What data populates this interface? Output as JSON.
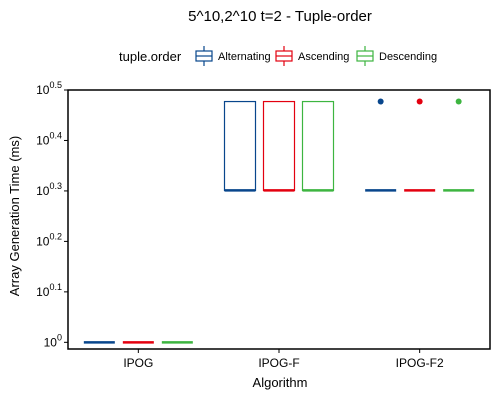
{
  "chart_data": {
    "type": "box",
    "title": "5^10,2^10 t=2 - Tuple-order",
    "xlabel": "Algorithm",
    "ylabel": "Array Generation Time (ms)",
    "categories": [
      "IPOG",
      "IPOG-F",
      "IPOG-F2"
    ],
    "y_scale": "log10",
    "y_ticks": [
      {
        "exp": "0",
        "value": 1.0
      },
      {
        "exp": "0.1",
        "value": 1.2589
      },
      {
        "exp": "0.2",
        "value": 1.5849
      },
      {
        "exp": "0.3",
        "value": 1.9953
      },
      {
        "exp": "0.4",
        "value": 2.5119
      },
      {
        "exp": "0.5",
        "value": 3.1623
      }
    ],
    "ylim": [
      0.97,
      3.1623
    ],
    "legend": {
      "title": "tuple.order",
      "position": "top",
      "entries": [
        "Alternating",
        "Ascending",
        "Descending"
      ]
    },
    "series": [
      {
        "name": "Alternating",
        "color": "#08468C",
        "boxes": [
          {
            "min": 1,
            "q1": 1,
            "median": 1,
            "q3": 1,
            "max": 1,
            "outliers": []
          },
          {
            "min": 2,
            "q1": 2,
            "median": 2,
            "q3": 3,
            "max": 3,
            "outliers": []
          },
          {
            "min": 2,
            "q1": 2,
            "median": 2,
            "q3": 2,
            "max": 2,
            "outliers": [
              3
            ]
          }
        ]
      },
      {
        "name": "Ascending",
        "color": "#E3000F",
        "boxes": [
          {
            "min": 1,
            "q1": 1,
            "median": 1,
            "q3": 1,
            "max": 1,
            "outliers": []
          },
          {
            "min": 2,
            "q1": 2,
            "median": 2,
            "q3": 3,
            "max": 3,
            "outliers": []
          },
          {
            "min": 2,
            "q1": 2,
            "median": 2,
            "q3": 2,
            "max": 2,
            "outliers": [
              3
            ]
          }
        ]
      },
      {
        "name": "Descending",
        "color": "#3DB540",
        "boxes": [
          {
            "min": 1,
            "q1": 1,
            "median": 1,
            "q3": 1,
            "max": 1,
            "outliers": []
          },
          {
            "min": 2,
            "q1": 2,
            "median": 2,
            "q3": 3,
            "max": 3,
            "outliers": []
          },
          {
            "min": 2,
            "q1": 2,
            "median": 2,
            "q3": 2,
            "max": 2,
            "outliers": [
              3
            ]
          }
        ]
      }
    ]
  }
}
